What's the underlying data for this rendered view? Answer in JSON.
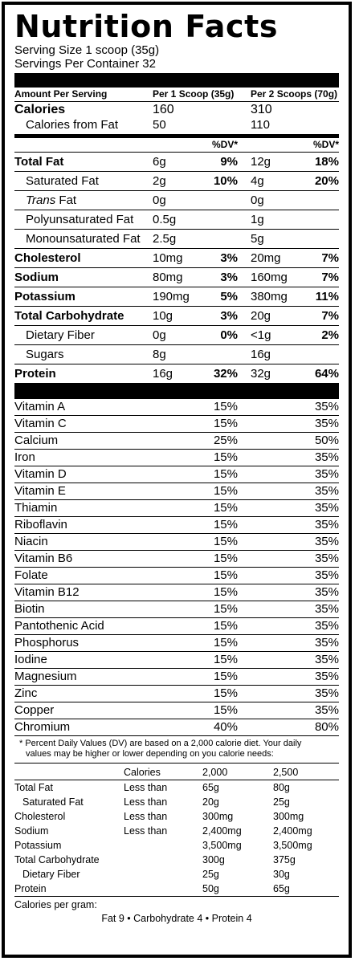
{
  "title": "Nutrition Facts",
  "serving_size": "Serving Size 1 scoop (35g)",
  "servings_per_container": "Servings Per Container 32",
  "amount_per_serving": "Amount Per Serving",
  "per1_header": "Per 1 Scoop (35g)",
  "per2_header": "Per 2 Scoops (70g)",
  "calories": {
    "label": "Calories",
    "v1": "160",
    "v2": "310"
  },
  "calories_fat": {
    "label": "Calories from Fat",
    "v1": "50",
    "v2": "110"
  },
  "dv_header": "%DV*",
  "nutrients": [
    {
      "label": "Total Fat",
      "a1": "6g",
      "d1": "9%",
      "a2": "12g",
      "d2": "18%"
    },
    {
      "label": "Saturated Fat",
      "a1": "2g",
      "d1": "10%",
      "a2": "4g",
      "d2": "20%"
    },
    {
      "label_italic": "Trans",
      "label_rest": " Fat",
      "a1": "0g",
      "d1": "",
      "a2": "0g",
      "d2": ""
    },
    {
      "label": "Polyunsaturated Fat",
      "a1": "0.5g",
      "d1": "",
      "a2": "1g",
      "d2": ""
    },
    {
      "label": "Monounsaturated Fat",
      "a1": "2.5g",
      "d1": "",
      "a2": "5g",
      "d2": ""
    },
    {
      "label": "Cholesterol",
      "a1": "10mg",
      "d1": "3%",
      "a2": "20mg",
      "d2": "7%"
    },
    {
      "label": "Sodium",
      "a1": "80mg",
      "d1": "3%",
      "a2": "160mg",
      "d2": "7%"
    },
    {
      "label": "Potassium",
      "a1": "190mg",
      "d1": "5%",
      "a2": "380mg",
      "d2": "11%"
    },
    {
      "label": "Total Carbohydrate",
      "a1": "10g",
      "d1": "3%",
      "a2": "20g",
      "d2": "7%"
    },
    {
      "label": "Dietary Fiber",
      "a1": "0g",
      "d1": "0%",
      "a2": "<1g",
      "d2": "2%"
    },
    {
      "label": "Sugars",
      "a1": "8g",
      "d1": "",
      "a2": "16g",
      "d2": ""
    },
    {
      "label": "Protein",
      "a1": "16g",
      "d1": "32%",
      "a2": "32g",
      "d2": "64%"
    }
  ],
  "vitamins": [
    {
      "label": "Vitamin A",
      "v1": "15%",
      "v2": "35%"
    },
    {
      "label": "Vitamin C",
      "v1": "15%",
      "v2": "35%"
    },
    {
      "label": "Calcium",
      "v1": "25%",
      "v2": "50%"
    },
    {
      "label": "Iron",
      "v1": "15%",
      "v2": "35%"
    },
    {
      "label": "Vitamin D",
      "v1": "15%",
      "v2": "35%"
    },
    {
      "label": "Vitamin E",
      "v1": "15%",
      "v2": "35%"
    },
    {
      "label": "Thiamin",
      "v1": "15%",
      "v2": "35%"
    },
    {
      "label": "Riboflavin",
      "v1": "15%",
      "v2": "35%"
    },
    {
      "label": "Niacin",
      "v1": "15%",
      "v2": "35%"
    },
    {
      "label": "Vitamin B6",
      "v1": "15%",
      "v2": "35%"
    },
    {
      "label": "Folate",
      "v1": "15%",
      "v2": "35%"
    },
    {
      "label": "Vitamin B12",
      "v1": "15%",
      "v2": "35%"
    },
    {
      "label": "Biotin",
      "v1": "15%",
      "v2": "35%"
    },
    {
      "label": "Pantothenic Acid",
      "v1": "15%",
      "v2": "35%"
    },
    {
      "label": "Phosphorus",
      "v1": "15%",
      "v2": "35%"
    },
    {
      "label": "Iodine",
      "v1": "15%",
      "v2": "35%"
    },
    {
      "label": "Magnesium",
      "v1": "15%",
      "v2": "35%"
    },
    {
      "label": "Zinc",
      "v1": "15%",
      "v2": "35%"
    },
    {
      "label": "Copper",
      "v1": "15%",
      "v2": "35%"
    },
    {
      "label": "Chromium",
      "v1": "40%",
      "v2": "80%"
    }
  ],
  "footnote_line1": "* Percent Daily Values (DV) are based on a 2,000 calorie diet.  Your daily",
  "footnote_line2": "values may be higher or lower depending on you calorie needs:",
  "footer_header": {
    "c2": "Calories",
    "c3": "2,000",
    "c4": "2,500"
  },
  "footer_rows": [
    {
      "label": "Total Fat",
      "c2": "Less than",
      "c3": "65g",
      "c4": "80g"
    },
    {
      "label": "Saturated Fat",
      "c2": "Less than",
      "c3": "20g",
      "c4": "25g"
    },
    {
      "label": "Cholesterol",
      "c2": "Less than",
      "c3": "300mg",
      "c4": "300mg"
    },
    {
      "label": "Sodium",
      "c2": "Less than",
      "c3": "2,400mg",
      "c4": "2,400mg"
    },
    {
      "label": "Potassium",
      "c2": "",
      "c3": "3,500mg",
      "c4": "3,500mg"
    },
    {
      "label": "Total Carbohydrate",
      "c2": "",
      "c3": "300g",
      "c4": "375g"
    },
    {
      "label": "Dietary Fiber",
      "c2": "",
      "c3": "25g",
      "c4": "30g"
    },
    {
      "label": "Protein",
      "c2": "",
      "c3": "50g",
      "c4": "65g"
    }
  ],
  "calories_per_gram_label": "Calories per gram:",
  "calories_per_gram_values": "Fat 9 • Carbohydrate 4 • Protein 4"
}
